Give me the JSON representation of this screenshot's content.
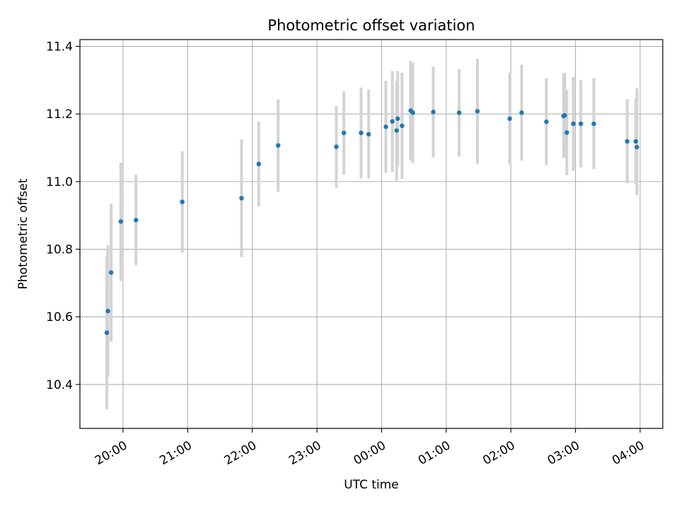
{
  "chart_data": {
    "type": "scatter",
    "title": "Photometric offset variation",
    "xlabel": "UTC time",
    "ylabel": "Photometric offset",
    "x_axis_type": "time",
    "xlim": [
      "2000-01-01 19:20",
      "2000-01-02 04:21"
    ],
    "ylim": [
      10.27,
      11.42
    ],
    "grid": true,
    "x_ticks": [
      {
        "value": "2000-01-01 20:00",
        "label": "20:00"
      },
      {
        "value": "2000-01-01 21:00",
        "label": "21:00"
      },
      {
        "value": "2000-01-01 22:00",
        "label": "22:00"
      },
      {
        "value": "2000-01-01 23:00",
        "label": "23:00"
      },
      {
        "value": "2000-01-02 00:00",
        "label": "00:00"
      },
      {
        "value": "2000-01-02 01:00",
        "label": "01:00"
      },
      {
        "value": "2000-01-02 02:00",
        "label": "02:00"
      },
      {
        "value": "2000-01-02 03:00",
        "label": "03:00"
      },
      {
        "value": "2000-01-02 04:00",
        "label": "04:00"
      }
    ],
    "y_ticks": [
      {
        "value": 10.4,
        "label": "10.4"
      },
      {
        "value": 10.6,
        "label": "10.6"
      },
      {
        "value": 10.8,
        "label": "10.8"
      },
      {
        "value": 11.0,
        "label": "11.0"
      },
      {
        "value": 11.2,
        "label": "11.2"
      },
      {
        "value": 11.4,
        "label": "11.4"
      }
    ],
    "colors": {
      "point": "#1f77b4",
      "errorbar": "#d3d3d3",
      "grid": "#b0b0b0",
      "axes": "#000000"
    },
    "points": [
      {
        "x": "2000-01-01 19:45",
        "y": 10.553,
        "lo": 10.327,
        "hi": 10.779
      },
      {
        "x": "2000-01-01 19:46",
        "y": 10.617,
        "lo": 10.423,
        "hi": 10.812
      },
      {
        "x": "2000-01-01 19:49",
        "y": 10.731,
        "lo": 10.527,
        "hi": 10.935
      },
      {
        "x": "2000-01-01 19:58",
        "y": 10.882,
        "lo": 10.706,
        "hi": 11.056
      },
      {
        "x": "2000-01-01 20:12",
        "y": 10.886,
        "lo": 10.752,
        "hi": 11.021
      },
      {
        "x": "2000-01-01 20:55",
        "y": 10.94,
        "lo": 10.79,
        "hi": 11.09
      },
      {
        "x": "2000-01-01 21:50",
        "y": 10.951,
        "lo": 10.777,
        "hi": 11.125
      },
      {
        "x": "2000-01-01 22:06",
        "y": 11.052,
        "lo": 10.927,
        "hi": 11.177
      },
      {
        "x": "2000-01-01 22:24",
        "y": 11.107,
        "lo": 10.97,
        "hi": 11.243
      },
      {
        "x": "2000-01-01 23:18",
        "y": 11.103,
        "lo": 10.982,
        "hi": 11.224
      },
      {
        "x": "2000-01-01 23:25",
        "y": 11.144,
        "lo": 11.021,
        "hi": 11.267
      },
      {
        "x": "2000-01-01 23:41",
        "y": 11.144,
        "lo": 11.01,
        "hi": 11.278
      },
      {
        "x": "2000-01-01 23:48",
        "y": 11.14,
        "lo": 11.009,
        "hi": 11.272
      },
      {
        "x": "2000-01-02 00:04",
        "y": 11.162,
        "lo": 11.026,
        "hi": 11.298
      },
      {
        "x": "2000-01-02 00:10",
        "y": 11.178,
        "lo": 11.028,
        "hi": 11.327
      },
      {
        "x": "2000-01-02 00:14",
        "y": 11.151,
        "lo": 11.003,
        "hi": 11.298
      },
      {
        "x": "2000-01-02 00:15",
        "y": 11.186,
        "lo": 11.045,
        "hi": 11.327
      },
      {
        "x": "2000-01-02 00:19",
        "y": 11.165,
        "lo": 11.008,
        "hi": 11.322
      },
      {
        "x": "2000-01-02 00:27",
        "y": 11.21,
        "lo": 11.063,
        "hi": 11.357
      },
      {
        "x": "2000-01-02 00:29",
        "y": 11.204,
        "lo": 11.055,
        "hi": 11.352
      },
      {
        "x": "2000-01-02 00:48",
        "y": 11.206,
        "lo": 11.072,
        "hi": 11.34
      },
      {
        "x": "2000-01-02 01:12",
        "y": 11.204,
        "lo": 11.074,
        "hi": 11.333
      },
      {
        "x": "2000-01-02 01:29",
        "y": 11.208,
        "lo": 11.053,
        "hi": 11.363
      },
      {
        "x": "2000-01-02 01:59",
        "y": 11.186,
        "lo": 11.05,
        "hi": 11.322
      },
      {
        "x": "2000-01-02 02:10",
        "y": 11.204,
        "lo": 11.062,
        "hi": 11.346
      },
      {
        "x": "2000-01-02 02:33",
        "y": 11.177,
        "lo": 11.048,
        "hi": 11.306
      },
      {
        "x": "2000-01-02 02:49",
        "y": 11.194,
        "lo": 11.07,
        "hi": 11.318
      },
      {
        "x": "2000-01-02 02:50",
        "y": 11.196,
        "lo": 11.071,
        "hi": 11.322
      },
      {
        "x": "2000-01-02 02:52",
        "y": 11.145,
        "lo": 11.019,
        "hi": 11.271
      },
      {
        "x": "2000-01-02 02:58",
        "y": 11.171,
        "lo": 11.032,
        "hi": 11.31
      },
      {
        "x": "2000-01-02 03:05",
        "y": 11.171,
        "lo": 11.042,
        "hi": 11.3
      },
      {
        "x": "2000-01-02 03:17",
        "y": 11.171,
        "lo": 11.037,
        "hi": 11.306
      },
      {
        "x": "2000-01-02 03:48",
        "y": 11.119,
        "lo": 10.995,
        "hi": 11.243
      },
      {
        "x": "2000-01-02 03:56",
        "y": 11.119,
        "lo": 10.992,
        "hi": 11.246
      },
      {
        "x": "2000-01-02 03:57",
        "y": 11.102,
        "lo": 10.96,
        "hi": 11.276
      }
    ]
  }
}
